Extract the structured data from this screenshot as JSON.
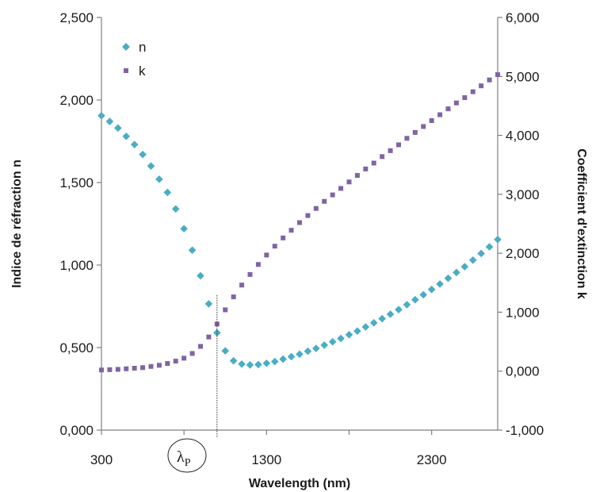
{
  "chart_data": {
    "type": "scatter",
    "xlabel": "Wavelength (nm)",
    "ylabel_left": "Indice de réfraction n",
    "ylabel_right": "Coefficient d'extinction k",
    "xlim": [
      300,
      2700
    ],
    "ylim_left": [
      0,
      2.5
    ],
    "ylim_right": [
      -1,
      6
    ],
    "x_ticks": [
      "300",
      "1300",
      "2300"
    ],
    "y_left_ticks": [
      "0,000",
      "0,500",
      "1,000",
      "1,500",
      "2,000",
      "2,500"
    ],
    "y_right_ticks": [
      "-1,000",
      "0,000",
      "1,000",
      "2,000",
      "3,000",
      "4,000",
      "5,000",
      "6,000"
    ],
    "legend_position": "top-left",
    "annotation": {
      "label": "λ",
      "subscript": "P",
      "x": 1000
    },
    "grid": false,
    "series": [
      {
        "name": "n",
        "axis": "left",
        "marker": "diamond",
        "color": "#4BACC6",
        "x": [
          300,
          350,
          400,
          450,
          500,
          550,
          600,
          650,
          700,
          750,
          800,
          850,
          900,
          950,
          1000,
          1050,
          1100,
          1150,
          1200,
          1250,
          1300,
          1350,
          1400,
          1450,
          1500,
          1550,
          1600,
          1650,
          1700,
          1750,
          1800,
          1850,
          1900,
          1950,
          2000,
          2050,
          2100,
          2150,
          2200,
          2250,
          2300,
          2350,
          2400,
          2450,
          2500,
          2550,
          2600,
          2650,
          2700
        ],
        "y": [
          1.905,
          1.87,
          1.83,
          1.78,
          1.73,
          1.67,
          1.6,
          1.52,
          1.44,
          1.34,
          1.22,
          1.09,
          0.935,
          0.765,
          0.59,
          0.48,
          0.42,
          0.4,
          0.395,
          0.397,
          0.405,
          0.415,
          0.43,
          0.445,
          0.46,
          0.478,
          0.495,
          0.515,
          0.535,
          0.555,
          0.578,
          0.6,
          0.625,
          0.65,
          0.675,
          0.702,
          0.73,
          0.76,
          0.79,
          0.82,
          0.852,
          0.885,
          0.92,
          0.955,
          0.99,
          1.03,
          1.07,
          1.11,
          1.155
        ]
      },
      {
        "name": "k",
        "axis": "right",
        "marker": "square",
        "color": "#8064A2",
        "x": [
          300,
          350,
          400,
          450,
          500,
          550,
          600,
          650,
          700,
          750,
          800,
          850,
          900,
          950,
          1000,
          1050,
          1100,
          1150,
          1200,
          1250,
          1300,
          1350,
          1400,
          1450,
          1500,
          1550,
          1600,
          1650,
          1700,
          1750,
          1800,
          1850,
          1900,
          1950,
          2000,
          2050,
          2100,
          2150,
          2200,
          2250,
          2300,
          2350,
          2400,
          2450,
          2500,
          2550,
          2600,
          2650,
          2700
        ],
        "y": [
          0.02,
          0.025,
          0.03,
          0.04,
          0.05,
          0.06,
          0.08,
          0.1,
          0.13,
          0.17,
          0.22,
          0.3,
          0.42,
          0.58,
          0.8,
          1.04,
          1.26,
          1.46,
          1.64,
          1.81,
          1.97,
          2.12,
          2.26,
          2.39,
          2.52,
          2.64,
          2.76,
          2.88,
          2.99,
          3.1,
          3.21,
          3.32,
          3.43,
          3.53,
          3.64,
          3.74,
          3.84,
          3.95,
          4.05,
          4.15,
          4.25,
          4.35,
          4.45,
          4.55,
          4.64,
          4.74,
          4.84,
          4.94,
          5.03
        ]
      }
    ]
  }
}
